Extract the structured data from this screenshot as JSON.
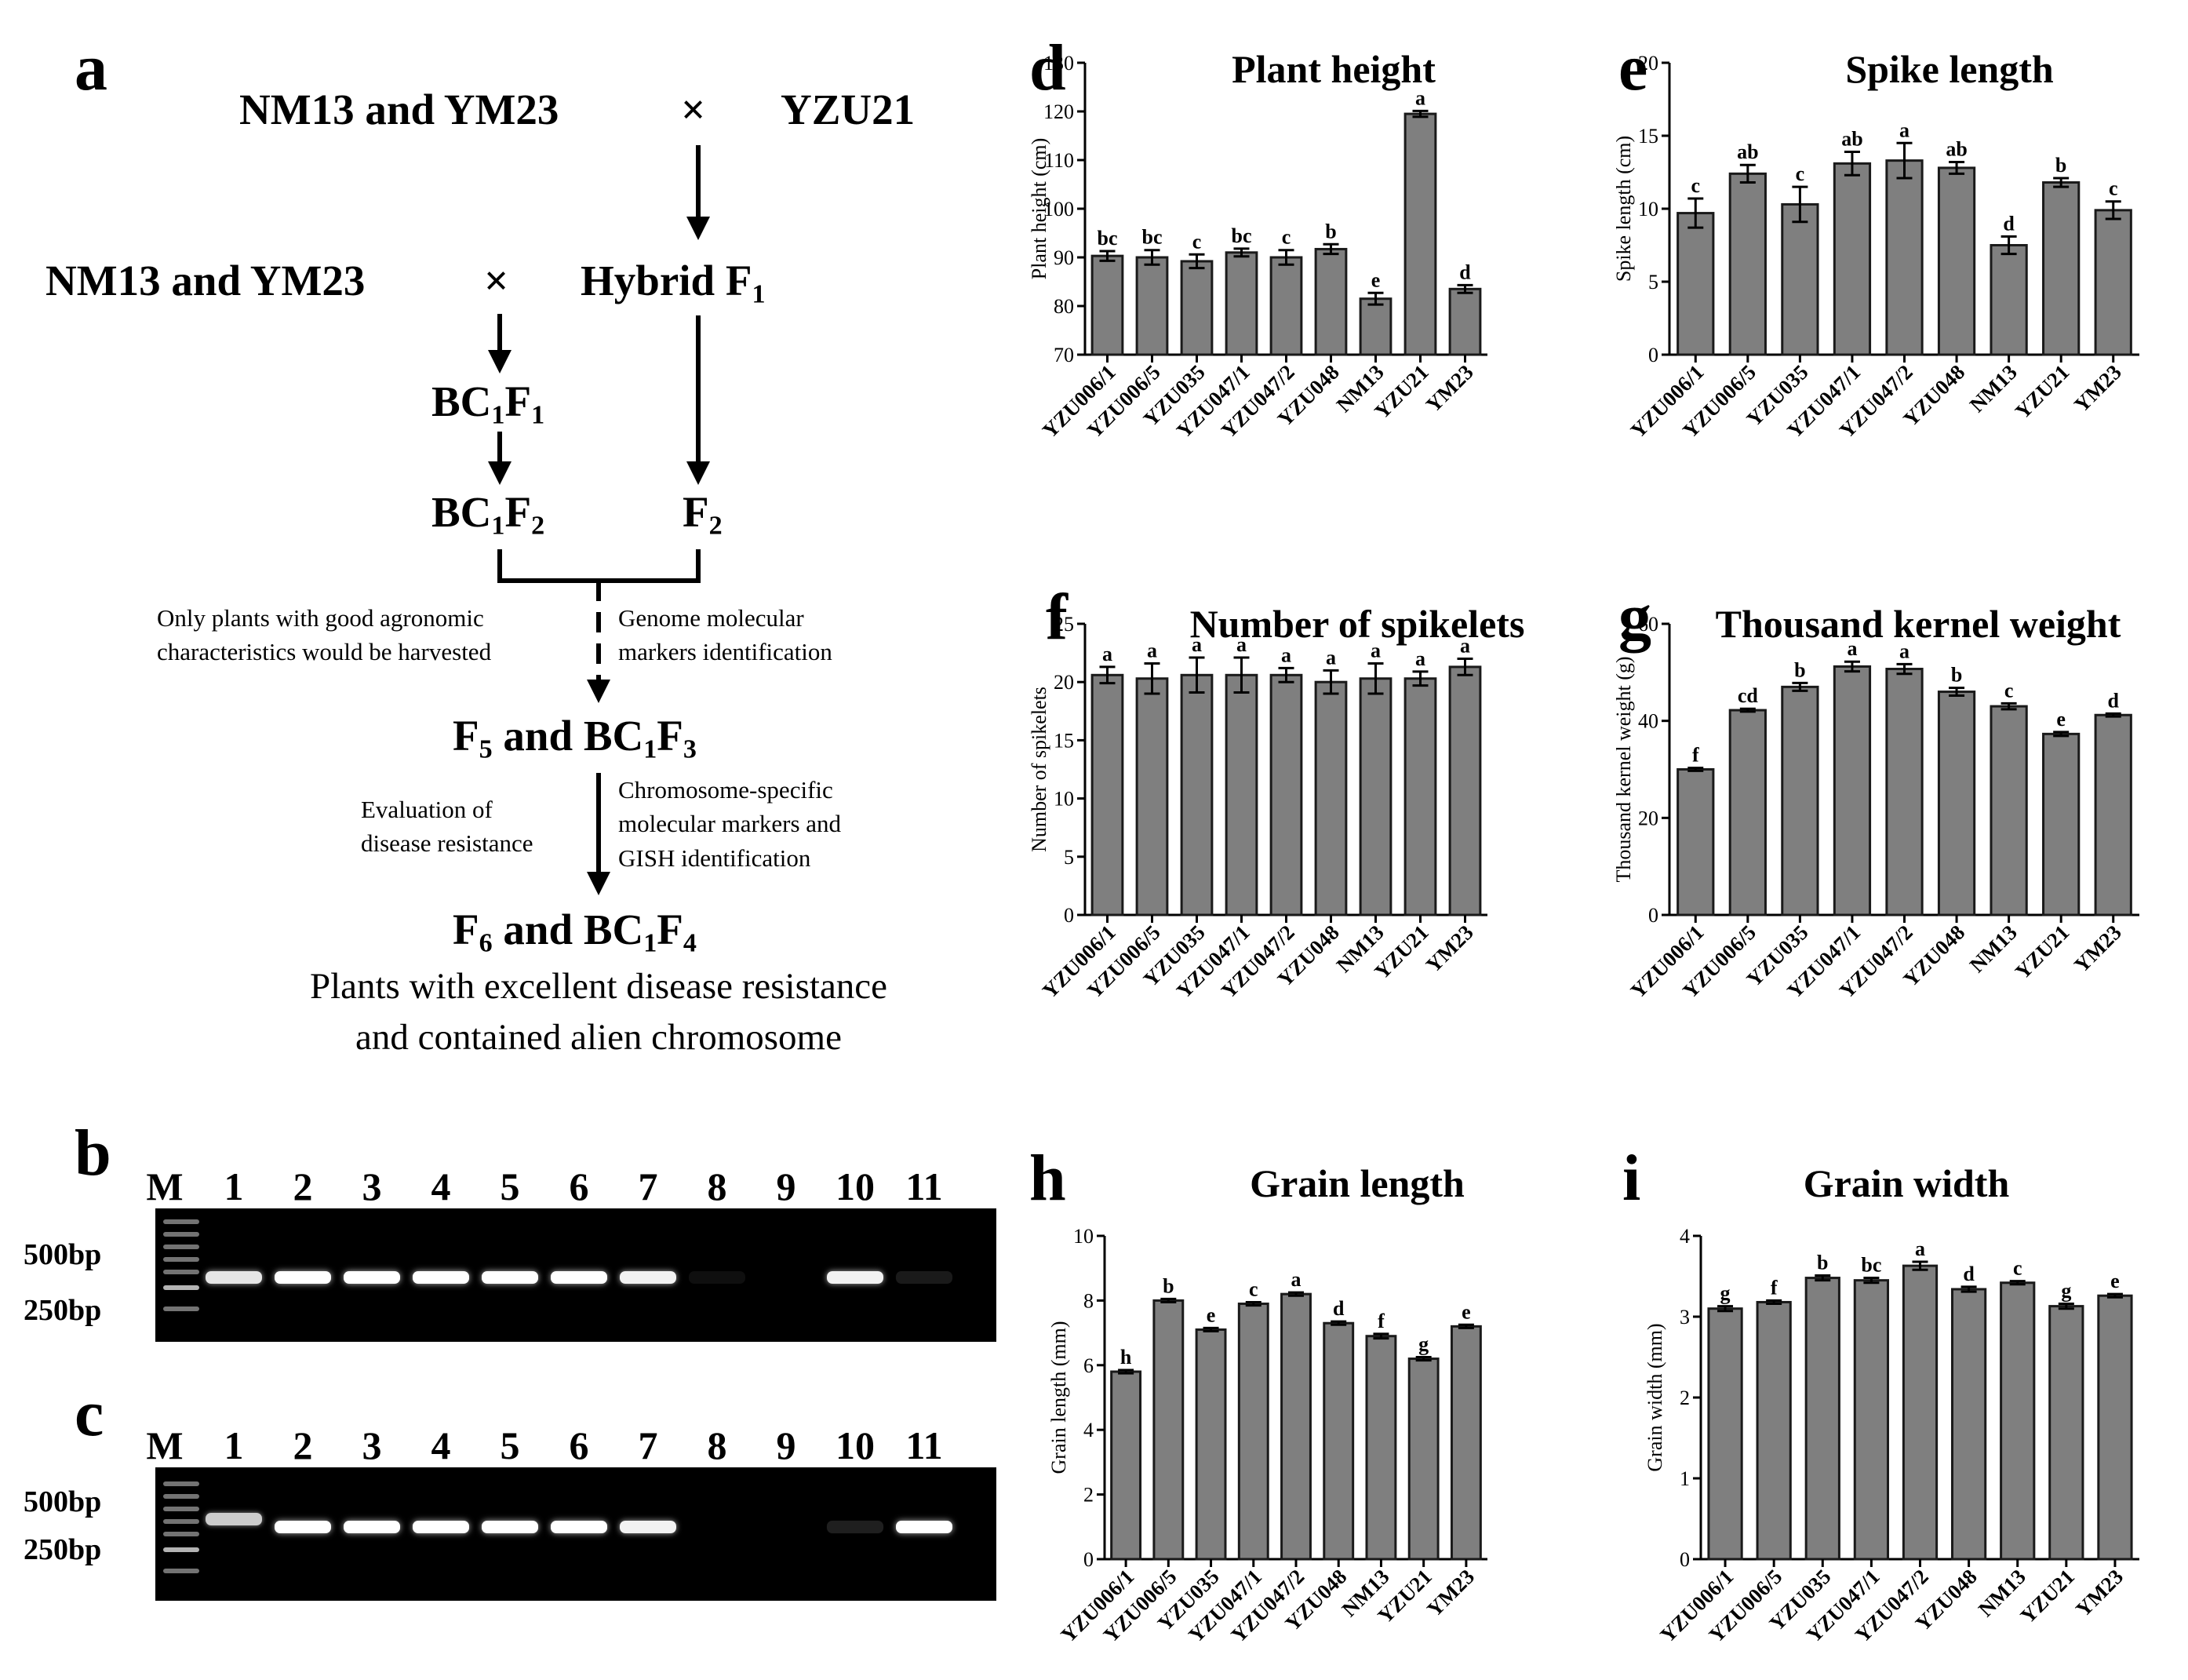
{
  "panel_letters": {
    "a": "a",
    "b": "b",
    "c": "c",
    "d": "d",
    "e": "e",
    "f": "f",
    "g": "g",
    "h": "h",
    "i": "i"
  },
  "flowchart": {
    "row1_left": "NM13 and YM23",
    "times": "×",
    "row1_right": "YZU21",
    "row2_left": "NM13 and YM23",
    "row2_right_main": "Hybrid F",
    "row2_right_sub": "1",
    "bc1f1": {
      "a": "BC",
      "a_sub": "1",
      "b": "F",
      "b_sub": "1"
    },
    "bc1f2": {
      "a": "BC",
      "a_sub": "1",
      "b": "F",
      "b_sub": "2"
    },
    "f2": {
      "a": "F",
      "a_sub": "2"
    },
    "note_left_1": "Only plants with good agronomic",
    "note_left_2": "characteristics would be harvested",
    "note_right_1": "Genome molecular",
    "note_right_2": "markers  identification",
    "f5_line": {
      "f": "F",
      "f_sub": "5",
      "mid": " and BC",
      "bc_sub": "1",
      "f2": "F",
      "f2_sub": "3"
    },
    "eval_1": "Evaluation          of",
    "eval_2": "disease resistance",
    "chrom_1": "Chromosome-specific",
    "chrom_2": "molecular markers and",
    "chrom_3": "GISH identification",
    "f6_line": {
      "f": "F",
      "f_sub": "6",
      "mid": " and BC",
      "bc_sub": "1",
      "f2": "F",
      "f2_sub": "4"
    },
    "desc_1": "Plants with excellent disease resistance",
    "desc_2": "and contained alien chromosome"
  },
  "gels": {
    "lane_labels": [
      "M",
      "1",
      "2",
      "3",
      "4",
      "5",
      "6",
      "7",
      "8",
      "9",
      "10",
      "11"
    ],
    "bp_500": "500bp",
    "bp_250": "250bp",
    "gel_b_band_strength": [
      0,
      0.9,
      1,
      1,
      1,
      1,
      1,
      0.95,
      0.06,
      0,
      0.95,
      0.1
    ],
    "gel_c_band_strength": [
      0,
      0.8,
      1,
      1,
      1,
      1,
      1,
      0.95,
      0,
      0,
      0.12,
      1
    ]
  },
  "chart_data": [
    {
      "id": "d",
      "type": "bar",
      "title": "Plant height",
      "ylabel": "Plant height (cm)",
      "ylim": [
        70,
        130
      ],
      "yticks": [
        70,
        80,
        90,
        100,
        110,
        120,
        130
      ],
      "categories": [
        "YZU006/1",
        "YZU006/5",
        "YZU035",
        "YZU047/1",
        "YZU047/2",
        "YZU048",
        "NM13",
        "YZU21",
        "YM23"
      ],
      "values": [
        90.3,
        90.0,
        89.2,
        91.0,
        90.0,
        91.7,
        81.5,
        119.5,
        83.5
      ],
      "errors": [
        1.0,
        1.5,
        1.4,
        0.8,
        1.5,
        1.0,
        1.2,
        0.6,
        0.8
      ],
      "letters": [
        "bc",
        "bc",
        "c",
        "bc",
        "c",
        "b",
        "e",
        "a",
        "d"
      ]
    },
    {
      "id": "e",
      "type": "bar",
      "title": "Spike length",
      "ylabel": "Spike length (cm)",
      "ylim": [
        0,
        20
      ],
      "yticks": [
        0,
        5,
        10,
        15,
        20
      ],
      "categories": [
        "YZU006/1",
        "YZU006/5",
        "YZU035",
        "YZU047/1",
        "YZU047/2",
        "YZU048",
        "NM13",
        "YZU21",
        "YM23"
      ],
      "values": [
        9.7,
        12.4,
        10.3,
        13.1,
        13.3,
        12.8,
        7.5,
        11.8,
        9.9
      ],
      "errors": [
        1.0,
        0.6,
        1.2,
        0.8,
        1.2,
        0.4,
        0.6,
        0.3,
        0.6
      ],
      "letters": [
        "c",
        "ab",
        "c",
        "ab",
        "a",
        "ab",
        "d",
        "b",
        "c"
      ]
    },
    {
      "id": "f",
      "type": "bar",
      "title": "Number of spikelets",
      "ylabel": "Number of spikelets",
      "ylim": [
        0,
        25
      ],
      "yticks": [
        0,
        5,
        10,
        15,
        20,
        25
      ],
      "categories": [
        "YZU006/1",
        "YZU006/5",
        "YZU035",
        "YZU047/1",
        "YZU047/2",
        "YZU048",
        "NM13",
        "YZU21",
        "YM23"
      ],
      "values": [
        20.6,
        20.3,
        20.6,
        20.6,
        20.6,
        20.0,
        20.3,
        20.3,
        21.3
      ],
      "errors": [
        0.7,
        1.3,
        1.5,
        1.5,
        0.6,
        1.0,
        1.3,
        0.6,
        0.7
      ],
      "letters": [
        "a",
        "a",
        "a",
        "a",
        "a",
        "a",
        "a",
        "a",
        "a"
      ]
    },
    {
      "id": "g",
      "type": "bar",
      "title": "Thousand kernel weight",
      "ylabel": "Thousand kernel weight (g)",
      "ylim": [
        0,
        60
      ],
      "yticks": [
        0,
        20,
        40,
        60
      ],
      "categories": [
        "YZU006/1",
        "YZU006/5",
        "YZU035",
        "YZU047/1",
        "YZU047/2",
        "YZU048",
        "NM13",
        "YZU21",
        "YM23"
      ],
      "values": [
        30.0,
        42.2,
        47.0,
        51.2,
        50.7,
        46.0,
        43.0,
        37.3,
        41.2
      ],
      "errors": [
        0.3,
        0.3,
        0.8,
        1.0,
        1.0,
        0.8,
        0.6,
        0.4,
        0.3
      ],
      "letters": [
        "f",
        "cd",
        "b",
        "a",
        "a",
        "b",
        "c",
        "e",
        "d"
      ]
    },
    {
      "id": "h",
      "type": "bar",
      "title": "Grain length",
      "ylabel": "Grain length (mm)",
      "ylim": [
        0,
        10
      ],
      "yticks": [
        0,
        2,
        4,
        6,
        8,
        10
      ],
      "categories": [
        "YZU006/1",
        "YZU006/5",
        "YZU035",
        "YZU047/1",
        "YZU047/2",
        "YZU048",
        "NM13",
        "YZU21",
        "YM23"
      ],
      "values": [
        5.8,
        8.0,
        7.1,
        7.9,
        8.2,
        7.3,
        6.9,
        6.2,
        7.2
      ],
      "errors": [
        0.05,
        0.05,
        0.05,
        0.05,
        0.05,
        0.05,
        0.07,
        0.05,
        0.05
      ],
      "letters": [
        "h",
        "b",
        "e",
        "c",
        "a",
        "d",
        "f",
        "g",
        "e"
      ]
    },
    {
      "id": "i",
      "type": "bar",
      "title": "Grain width",
      "ylabel": "Grain width (mm)",
      "ylim": [
        0,
        4
      ],
      "yticks": [
        0,
        1,
        2,
        3,
        4
      ],
      "categories": [
        "YZU006/1",
        "YZU006/5",
        "YZU035",
        "YZU047/1",
        "YZU047/2",
        "YZU048",
        "NM13",
        "YZU21",
        "YM23"
      ],
      "values": [
        3.1,
        3.18,
        3.48,
        3.45,
        3.63,
        3.34,
        3.42,
        3.13,
        3.26
      ],
      "errors": [
        0.03,
        0.02,
        0.03,
        0.03,
        0.05,
        0.03,
        0.02,
        0.03,
        0.02
      ],
      "letters": [
        "g",
        "f",
        "b",
        "bc",
        "a",
        "d",
        "c",
        "g",
        "e"
      ]
    }
  ]
}
